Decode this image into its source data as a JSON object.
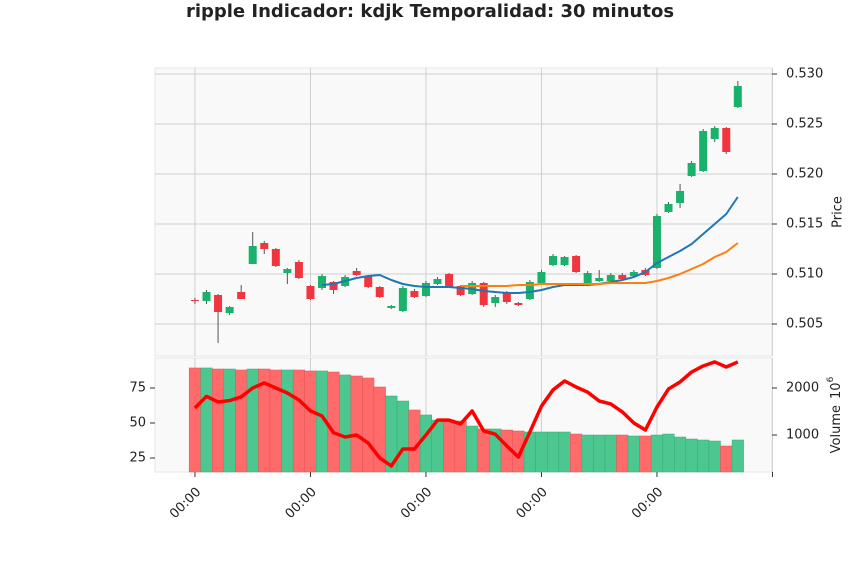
{
  "chart_data": {
    "type": "candlestick",
    "title": "ripple Indicador: kdjk Temporalidad: 30 minutos",
    "xlim": [
      -3.46,
      49.96
    ],
    "xticks": [
      {
        "value": 0,
        "label": "00:00"
      },
      {
        "value": 10,
        "label": "00:00"
      },
      {
        "value": 20,
        "label": "00:00"
      },
      {
        "value": 30,
        "label": "00:00"
      },
      {
        "value": 40,
        "label": "00:00"
      },
      {
        "value": 50,
        "label": null
      }
    ],
    "ylabel": "Price",
    "ylim": [
      0.5018,
      0.5306
    ],
    "yticks": [
      0.505,
      {
        "value": 0.51,
        "label": "0.510"
      },
      0.515,
      {
        "value": 0.52,
        "label": "0.520"
      },
      0.525,
      {
        "value": 0.53,
        "label": "0.530"
      }
    ],
    "up_color": "#1ab26b",
    "down_color": "#f2343f",
    "open": [
      0.5074,
      0.5073,
      0.5079,
      0.5061,
      0.5082,
      0.511,
      0.5131,
      0.5125,
      0.5101,
      0.5112,
      0.5088,
      0.5086,
      0.5092,
      0.5088,
      0.5103,
      0.5098,
      0.5087,
      0.5066,
      0.5063,
      0.5083,
      0.5078,
      0.509,
      0.51,
      0.5088,
      0.508,
      0.5091,
      0.5071,
      0.5082,
      0.5071,
      0.5075,
      0.5091,
      0.5109,
      0.5109,
      0.5118,
      0.5091,
      0.5093,
      0.5093,
      0.5099,
      0.5098,
      0.5104,
      0.5106,
      0.5162,
      0.5171,
      0.5198,
      0.5203,
      0.5235,
      0.5246,
      0.5267
    ],
    "high": [
      0.5076,
      0.5084,
      0.508,
      0.5068,
      0.5089,
      0.5142,
      0.5133,
      0.5126,
      0.5106,
      0.5114,
      0.5089,
      0.51,
      0.5093,
      0.5099,
      0.5106,
      0.5099,
      0.5088,
      0.5069,
      0.5088,
      0.5085,
      0.5093,
      0.5097,
      0.5101,
      0.5089,
      0.5093,
      0.5092,
      0.5079,
      0.5083,
      0.5072,
      0.5094,
      0.5104,
      0.512,
      0.5118,
      0.5119,
      0.5103,
      0.5104,
      0.5101,
      0.5101,
      0.5104,
      0.5106,
      0.516,
      0.5172,
      0.519,
      0.5213,
      0.5245,
      0.5248,
      0.5247,
      0.5293
    ],
    "low": [
      0.507,
      0.507,
      0.5031,
      0.5059,
      0.5075,
      0.511,
      0.512,
      0.5107,
      0.509,
      0.5095,
      0.5074,
      0.5084,
      0.508,
      0.5087,
      0.5098,
      0.5086,
      0.5076,
      0.5065,
      0.5062,
      0.5076,
      0.5077,
      0.5089,
      0.5086,
      0.5078,
      0.5079,
      0.5067,
      0.5067,
      0.507,
      0.5068,
      0.5074,
      0.509,
      0.5108,
      0.5108,
      0.5101,
      0.509,
      0.5092,
      0.5092,
      0.5094,
      0.5097,
      0.5098,
      0.5105,
      0.5161,
      0.5166,
      0.5197,
      0.5202,
      0.5232,
      0.522,
      0.5266
    ],
    "close": [
      0.5073,
      0.5082,
      0.5062,
      0.5067,
      0.5075,
      0.5128,
      0.5125,
      0.5108,
      0.5105,
      0.5096,
      0.5075,
      0.5098,
      0.5084,
      0.5097,
      0.5099,
      0.5087,
      0.5077,
      0.5068,
      0.5086,
      0.5077,
      0.5091,
      0.5095,
      0.5087,
      0.5079,
      0.5091,
      0.5069,
      0.5077,
      0.5072,
      0.5069,
      0.5092,
      0.5102,
      0.5118,
      0.5117,
      0.5102,
      0.5101,
      0.5096,
      0.5099,
      0.5095,
      0.5102,
      0.5099,
      0.5158,
      0.517,
      0.5183,
      0.5211,
      0.5243,
      0.5246,
      0.5222,
      0.5288
    ],
    "series": [
      {
        "color": "#1f77b4",
        "values": [
          null,
          null,
          null,
          null,
          null,
          null,
          null,
          null,
          null,
          null,
          null,
          0.5089,
          0.509,
          0.5093,
          0.5096,
          0.5098,
          0.5099,
          0.5094,
          0.509,
          0.5088,
          0.5087,
          0.5087,
          0.5087,
          0.5086,
          0.5085,
          0.5083,
          0.5082,
          0.5081,
          0.5081,
          0.5082,
          0.5084,
          0.5087,
          0.5089,
          0.5089,
          0.5089,
          0.509,
          0.5092,
          0.5094,
          0.5097,
          0.5102,
          0.5111,
          0.5117,
          0.5123,
          0.513,
          0.514,
          0.515,
          0.516,
          0.5177
        ]
      },
      {
        "color": "#ff7f0e",
        "values": [
          null,
          null,
          null,
          null,
          null,
          null,
          null,
          null,
          null,
          null,
          null,
          null,
          null,
          null,
          null,
          null,
          null,
          null,
          null,
          null,
          null,
          null,
          null,
          0.5088,
          0.5088,
          0.5088,
          0.5088,
          0.5088,
          0.5089,
          0.5089,
          0.509,
          0.509,
          0.509,
          0.509,
          0.509,
          0.509,
          0.5091,
          0.5091,
          0.5091,
          0.5091,
          0.5093,
          0.5096,
          0.51,
          0.5105,
          0.511,
          0.5117,
          0.5122,
          0.5131
        ]
      }
    ],
    "volume": {
      "values": [
        2426,
        2426,
        2404,
        2404,
        2383,
        2404,
        2404,
        2383,
        2383,
        2383,
        2362,
        2362,
        2340,
        2277,
        2255,
        2213,
        2021,
        1830,
        1723,
        1532,
        1426,
        1319,
        1319,
        1298,
        1191,
        1128,
        1128,
        1106,
        1085,
        1064,
        1064,
        1064,
        1064,
        1021,
        1000,
        1000,
        1000,
        1000,
        979,
        979,
        1000,
        1021,
        957,
        915,
        894,
        872,
        766,
        894
      ],
      "ylim": [
        213,
        2638
      ],
      "yticks": [
        1000,
        2000
      ],
      "label": "Volume",
      "scale_base": "10",
      "scale_exponent": "6",
      "up_color": "#4dc790",
      "down_color": "#ff6b6b"
    },
    "indicator": {
      "color": "#ff0000",
      "ylim": [
        15,
        96.4
      ],
      "yticks": [
        25,
        50,
        75
      ],
      "values": [
        60.7,
        69,
        65,
        66,
        68.6,
        75,
        78.6,
        75,
        71.4,
        66.4,
        58.6,
        55,
        43,
        40,
        41.4,
        35.7,
        25,
        19.3,
        31.4,
        31.4,
        41.4,
        52,
        52,
        49.3,
        58.6,
        44.3,
        42,
        33.6,
        25.7,
        43.6,
        62,
        73.6,
        80,
        75.7,
        72,
        65.7,
        63.6,
        57.9,
        50,
        45,
        61.4,
        74.3,
        79.3,
        86.4,
        90.7,
        93.6,
        90,
        93.6
      ]
    },
    "grid": true
  }
}
